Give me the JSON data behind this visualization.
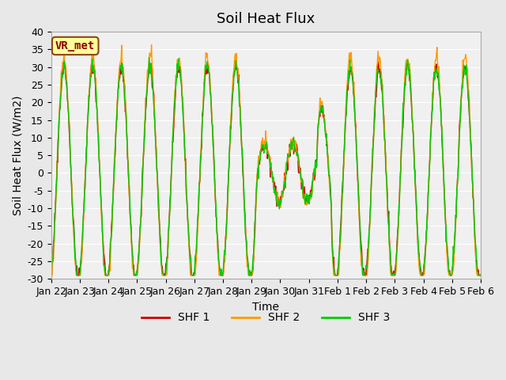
{
  "title": "Soil Heat Flux",
  "ylabel": "Soil Heat Flux (W/m2)",
  "xlabel": "Time",
  "annotation": "VR_met",
  "legend": [
    "SHF 1",
    "SHF 2",
    "SHF 3"
  ],
  "colors": [
    "#cc0000",
    "#ff9900",
    "#00cc00"
  ],
  "ylim": [
    -30,
    40
  ],
  "background_color": "#e8e8e8",
  "plot_bg": "#f0f0f0",
  "title_fontsize": 13,
  "axis_fontsize": 10,
  "tick_fontsize": 9,
  "legend_fontsize": 10,
  "xtick_labels": [
    "Jan 22",
    "Jan 23",
    "Jan 24",
    "Jan 25",
    "Jan 26",
    "Jan 27",
    "Jan 28",
    "Jan 29",
    "Jan 30",
    "Jan 31",
    "Feb 1",
    "Feb 2",
    "Feb 3",
    "Feb 4",
    "Feb 5",
    "Feb 6"
  ],
  "ytick_values": [
    -30,
    -25,
    -20,
    -15,
    -10,
    -5,
    0,
    5,
    10,
    15,
    20,
    25,
    30,
    35,
    40
  ],
  "num_days": 15,
  "points_per_day": 48
}
